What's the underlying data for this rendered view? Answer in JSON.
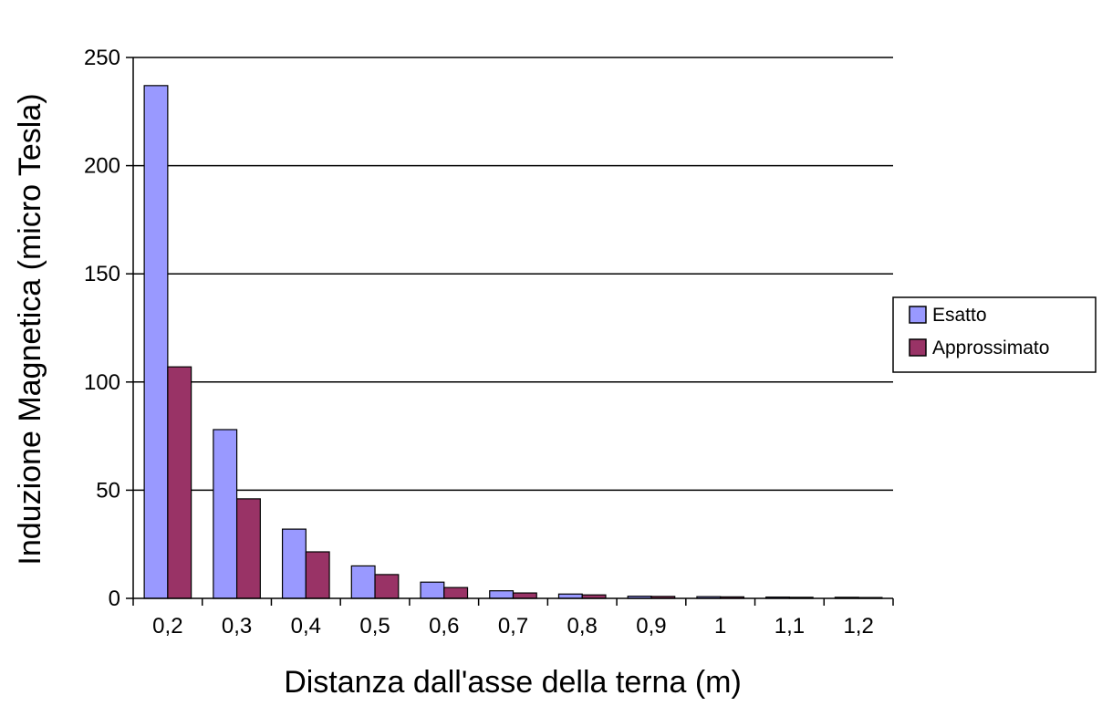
{
  "chart_data": {
    "type": "bar",
    "title": "",
    "xlabel": "Distanza dall'asse della terna (m)",
    "ylabel": "Induzione Magnetica (micro Tesla)",
    "ylim": [
      0,
      250
    ],
    "yticks": [
      0,
      50,
      100,
      150,
      200,
      250
    ],
    "grid": true,
    "legend_position": "right",
    "categories": [
      "0,2",
      "0,3",
      "0,4",
      "0,5",
      "0,6",
      "0,7",
      "0,8",
      "0,9",
      "1",
      "1,1",
      "1,2"
    ],
    "series": [
      {
        "name": "Esatto",
        "color": "#9999ff",
        "values": [
          237,
          78,
          32,
          15,
          7.5,
          3.5,
          2,
          1,
          0.8,
          0.6,
          0.5
        ]
      },
      {
        "name": "Approssimato",
        "color": "#993366",
        "values": [
          107,
          46,
          21.5,
          11,
          5,
          2.5,
          1.6,
          0.9,
          0.7,
          0.5,
          0.4
        ]
      }
    ]
  }
}
